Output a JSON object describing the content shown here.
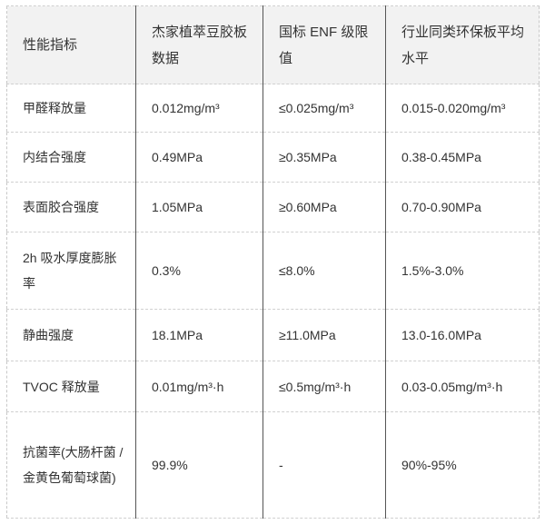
{
  "table": {
    "headers": [
      "性能指标",
      "杰家植萃豆胶板数据",
      "国标 ENF 级限值",
      "行业同类环保板平均水平"
    ],
    "rows": [
      [
        "甲醛释放量",
        "0.012mg/m³",
        "≤0.025mg/m³",
        "0.015-0.020mg/m³"
      ],
      [
        "内结合强度",
        "0.49MPa",
        "≥0.35MPa",
        "0.38-0.45MPa"
      ],
      [
        "表面胶合强度",
        "1.05MPa",
        "≥0.60MPa",
        "0.70-0.90MPa"
      ],
      [
        "2h 吸水厚度膨胀率",
        "0.3%",
        "≤8.0%",
        "1.5%-3.0%"
      ],
      [
        "静曲强度",
        "18.1MPa",
        "≥11.0MPa",
        "13.0-16.0MPa"
      ],
      [
        "TVOC 释放量",
        "0.01mg/m³·h",
        "≤0.5mg/m³·h",
        "0.03-0.05mg/m³·h"
      ],
      [
        "抗菌率(大肠杆菌 / 金黄色葡萄球菌)",
        "99.9%",
        "-",
        "90%-95%"
      ]
    ]
  },
  "colors": {
    "header_bg": "#f2f2f2",
    "column_rule": "#555555",
    "row_rule": "#d0d0d0"
  }
}
